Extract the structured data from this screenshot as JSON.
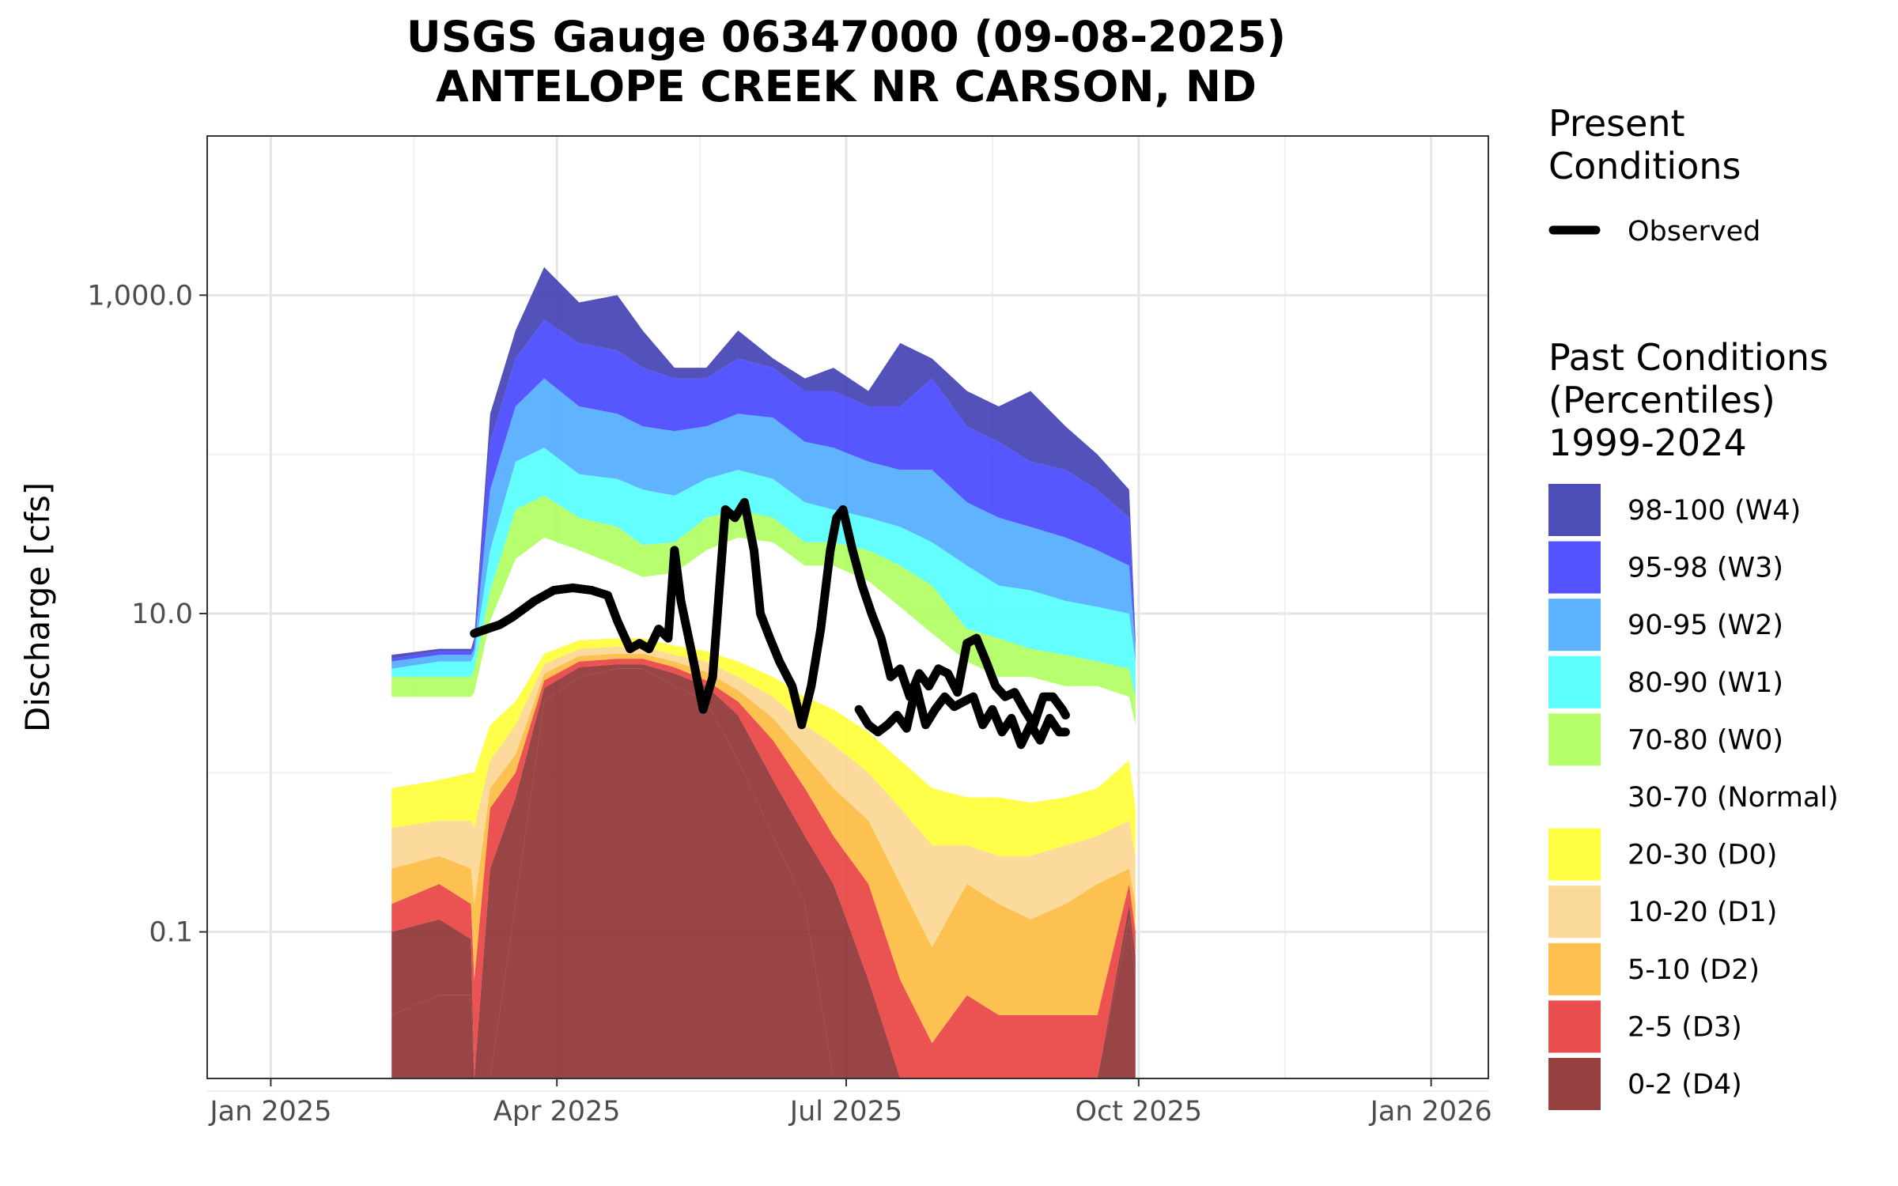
{
  "chart_data": {
    "type": "area",
    "title": "USGS Gauge 06347000 (09-08-2025)",
    "subtitle": "ANTELOPE CREEK NR CARSON, ND",
    "xlabel": "",
    "ylabel": "Discharge [cfs]",
    "y_scale": "log10",
    "xlim": [
      "2024-12-12",
      "2026-01-19"
    ],
    "ylim": [
      0.012,
      10000
    ],
    "grid": true,
    "legend_placement": "right",
    "x_ticks": [
      {
        "date": "2025-01-01",
        "label": "Jan 2025"
      },
      {
        "date": "2025-04-01",
        "label": "Apr 2025"
      },
      {
        "date": "2025-07-01",
        "label": "Jul 2025"
      },
      {
        "date": "2025-10-01",
        "label": "Oct 2025"
      },
      {
        "date": "2026-01-01",
        "label": "Jan 2026"
      }
    ],
    "y_ticks": [
      {
        "value": 1000,
        "label": "1,000.0"
      },
      {
        "value": 10,
        "label": "10.0"
      },
      {
        "value": 0.1,
        "label": "0.1"
      }
    ],
    "present_legend_title": [
      "Present",
      "Conditions"
    ],
    "observed_label": "Observed",
    "past_legend_title": [
      "Past Conditions",
      "(Percentiles)",
      "1999-2024"
    ],
    "bands": [
      {
        "name": "0-2 (D4)",
        "color": "#8b2b2b"
      },
      {
        "name": "2-5 (D3)",
        "color": "#e83a3a"
      },
      {
        "name": "5-10 (D2)",
        "color": "#fdb83a"
      },
      {
        "name": "10-20 (D1)",
        "color": "#fad58e"
      },
      {
        "name": "20-30 (D0)",
        "color": "#ffff30"
      },
      {
        "name": "30-70 (Normal)",
        "color": "#ffffff"
      },
      {
        "name": "70-80 (W0)",
        "color": "#adff5a"
      },
      {
        "name": "80-90 (W1)",
        "color": "#4dffff"
      },
      {
        "name": "90-95 (W2)",
        "color": "#4aaaff"
      },
      {
        "name": "95-98 (W3)",
        "color": "#4040ff"
      },
      {
        "name": "98-100 (W4)",
        "color": "#3a3ab0"
      }
    ],
    "percentile_dates": [
      "2025-02-08",
      "2025-02-23",
      "2025-03-05",
      "2025-03-06",
      "2025-03-11",
      "2025-03-19",
      "2025-03-28",
      "2025-04-08",
      "2025-04-20",
      "2025-04-28",
      "2025-05-08",
      "2025-05-18",
      "2025-05-28",
      "2025-06-08",
      "2025-06-18",
      "2025-06-27",
      "2025-07-08",
      "2025-07-18",
      "2025-07-28",
      "2025-08-08",
      "2025-08-18",
      "2025-08-28",
      "2025-09-08",
      "2025-09-18",
      "2025-09-28",
      "2025-09-30"
    ],
    "percentiles": {
      "p0": [
        0.03,
        0.04,
        0.04,
        0.012,
        0.012,
        0.15,
        2.8,
        4,
        4.5,
        4.5,
        3.5,
        2.8,
        1.2,
        0.4,
        0.15,
        0.012,
        0.012,
        0.012,
        0.012,
        0.012,
        0.012,
        0.012,
        0.012,
        0.012,
        0.12,
        0.05
      ],
      "p2": [
        0.1,
        0.12,
        0.09,
        0.012,
        0.25,
        0.7,
        3.4,
        4.6,
        4.8,
        4.8,
        4.2,
        3.5,
        2.3,
        0.9,
        0.4,
        0.2,
        0.05,
        0.012,
        0.012,
        0.012,
        0.012,
        0.012,
        0.012,
        0.012,
        0.15,
        0.07
      ],
      "p5": [
        0.15,
        0.2,
        0.15,
        0.05,
        0.6,
        1,
        3.8,
        5,
        5.2,
        5.2,
        4.6,
        3.8,
        2.8,
        1.6,
        0.8,
        0.4,
        0.2,
        0.05,
        0.02,
        0.04,
        0.03,
        0.03,
        0.03,
        0.03,
        0.2,
        0.1
      ],
      "p10": [
        0.25,
        0.3,
        0.25,
        0.15,
        0.8,
        1.3,
        4.2,
        5.4,
        5.6,
        5.6,
        5,
        4.3,
        3.3,
        2.2,
        1.3,
        0.8,
        0.5,
        0.2,
        0.08,
        0.2,
        0.15,
        0.12,
        0.15,
        0.2,
        0.25,
        0.15
      ],
      "p20": [
        0.45,
        0.5,
        0.5,
        0.45,
        1.2,
        2,
        4.8,
        6,
        6.2,
        6.2,
        5.5,
        5,
        4,
        3,
        2,
        1.5,
        1,
        0.6,
        0.35,
        0.35,
        0.3,
        0.3,
        0.35,
        0.4,
        0.5,
        0.3
      ],
      "p30": [
        0.8,
        0.9,
        1,
        1,
        2,
        2.8,
        5.6,
        6.8,
        7,
        7,
        6.3,
        5.8,
        5,
        4,
        3,
        2.5,
        1.8,
        1.2,
        0.8,
        0.7,
        0.7,
        0.65,
        0.7,
        0.8,
        1.2,
        0.6
      ],
      "p70": [
        3,
        3,
        3,
        3.2,
        9,
        22,
        30,
        25,
        20,
        17,
        18,
        25,
        30,
        28,
        20,
        20,
        16,
        11,
        7.5,
        5,
        4,
        4,
        3.5,
        3.5,
        3,
        2
      ],
      "p80": [
        4,
        4,
        4,
        4.5,
        14,
        45,
        55,
        40,
        35,
        27,
        28,
        40,
        45,
        40,
        28,
        28,
        25,
        20,
        15,
        8,
        7,
        6,
        5.5,
        5,
        4.5,
        3
      ],
      "p90": [
        4.5,
        5,
        5,
        5.5,
        25,
        90,
        110,
        75,
        70,
        60,
        55,
        70,
        80,
        70,
        50,
        45,
        40,
        35,
        28,
        20,
        15,
        14,
        12,
        11,
        10,
        5
      ],
      "p95": [
        5,
        5.5,
        5.5,
        6,
        60,
        200,
        300,
        200,
        180,
        150,
        140,
        150,
        180,
        170,
        120,
        110,
        90,
        80,
        80,
        50,
        40,
        35,
        30,
        25,
        20,
        6
      ],
      "p98": [
        5.2,
        5.8,
        5.8,
        6.5,
        120,
        400,
        700,
        500,
        450,
        350,
        300,
        300,
        400,
        350,
        250,
        250,
        200,
        200,
        300,
        150,
        120,
        90,
        80,
        60,
        40,
        6.5
      ],
      "p100": [
        5.5,
        6,
        6,
        7,
        180,
        600,
        1500,
        900,
        1000,
        600,
        350,
        350,
        600,
        400,
        300,
        350,
        250,
        500,
        400,
        250,
        200,
        250,
        150,
        100,
        60,
        7
      ]
    },
    "observed_segments": [
      {
        "x": [
          "2025-03-06",
          "2025-03-10",
          "2025-03-14",
          "2025-03-18",
          "2025-03-25",
          "2025-03-31",
          "2025-04-06",
          "2025-04-12",
          "2025-04-17",
          "2025-04-20",
          "2025-04-24",
          "2025-04-27",
          "2025-04-30",
          "2025-05-03",
          "2025-05-06",
          "2025-05-08",
          "2025-05-10",
          "2025-05-14",
          "2025-05-17",
          "2025-05-20",
          "2025-05-24",
          "2025-05-27",
          "2025-05-30",
          "2025-06-02",
          "2025-06-04",
          "2025-06-07",
          "2025-06-10",
          "2025-06-14",
          "2025-06-17",
          "2025-06-20",
          "2025-06-23",
          "2025-06-26",
          "2025-06-28",
          "2025-06-30",
          "2025-07-03",
          "2025-07-06",
          "2025-07-09",
          "2025-07-12",
          "2025-07-15",
          "2025-07-18",
          "2025-07-21",
          "2025-07-24",
          "2025-07-27",
          "2025-07-30",
          "2025-08-02",
          "2025-08-05",
          "2025-08-08",
          "2025-08-11",
          "2025-08-14",
          "2025-08-17",
          "2025-08-20",
          "2025-08-23",
          "2025-08-26",
          "2025-08-29",
          "2025-09-01",
          "2025-09-04",
          "2025-09-07",
          "2025-09-08"
        ],
        "y": [
          7.5,
          8,
          8.5,
          9.5,
          12,
          14,
          14.5,
          14,
          13,
          9,
          6,
          6.5,
          6,
          8,
          7,
          25,
          12,
          5,
          2.5,
          4,
          45,
          40,
          50,
          25,
          10,
          7,
          5,
          3.5,
          2,
          3.5,
          8,
          25,
          40,
          45,
          25,
          15,
          10,
          7,
          4,
          4.5,
          3,
          4.2,
          3.5,
          4.5,
          4.2,
          3.2,
          6.5,
          7,
          5,
          3.5,
          3,
          3.2,
          2.5,
          2,
          3,
          3,
          2.5,
          2.3
        ]
      },
      {
        "x": [
          "2025-07-05",
          "2025-07-08",
          "2025-07-11",
          "2025-07-14",
          "2025-07-17",
          "2025-07-20",
          "2025-07-23",
          "2025-07-26",
          "2025-07-29",
          "2025-08-01",
          "2025-08-04",
          "2025-08-07",
          "2025-08-10",
          "2025-08-13",
          "2025-08-16",
          "2025-08-19",
          "2025-08-22",
          "2025-08-25",
          "2025-08-28",
          "2025-08-31",
          "2025-09-03",
          "2025-09-06",
          "2025-09-08"
        ],
        "y": [
          2.5,
          2,
          1.8,
          2,
          2.3,
          1.9,
          3.5,
          2,
          2.5,
          3,
          2.6,
          2.8,
          3,
          2,
          2.5,
          1.8,
          2.2,
          1.5,
          2,
          1.6,
          2.2,
          1.8,
          1.8
        ]
      }
    ]
  }
}
